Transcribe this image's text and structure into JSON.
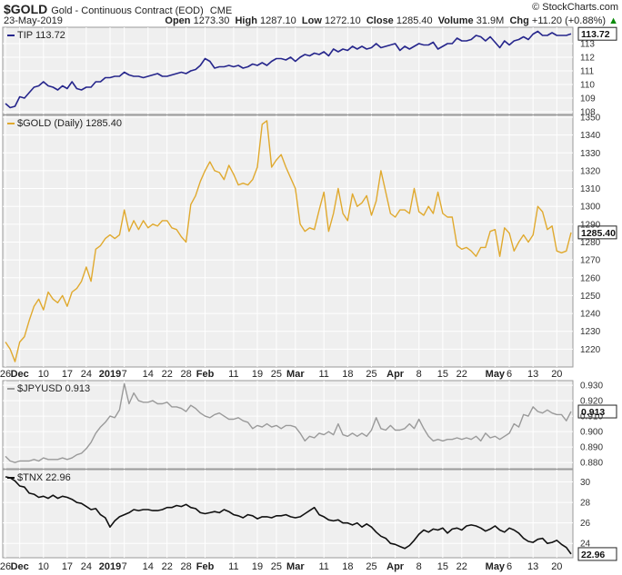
{
  "header": {
    "symbol": "$GOLD",
    "description": "Gold - Continuous Contract (EOD)",
    "exchange": "CME",
    "date": "23-May-2019",
    "watermark": "© StockCharts.com",
    "open_label": "Open",
    "open": "1273.30",
    "high_label": "High",
    "high": "1287.10",
    "low_label": "Low",
    "low": "1272.10",
    "close_label": "Close",
    "close": "1285.40",
    "volume_label": "Volume",
    "volume": "31.9M",
    "chg_label": "Chg",
    "chg": "+11.20 (+0.88%)",
    "chg_arrow": "▲"
  },
  "x_axis": {
    "ticks": [
      {
        "label": "26",
        "i": 0
      },
      {
        "label": "Dec",
        "i": 3,
        "bold": true
      },
      {
        "label": "10",
        "i": 8
      },
      {
        "label": "17",
        "i": 13
      },
      {
        "label": "24",
        "i": 17
      },
      {
        "label": "2019",
        "i": 22,
        "bold": true
      },
      {
        "label": "7",
        "i": 25
      },
      {
        "label": "14",
        "i": 30
      },
      {
        "label": "22",
        "i": 34
      },
      {
        "label": "28",
        "i": 38
      },
      {
        "label": "Feb",
        "i": 42,
        "bold": true
      },
      {
        "label": "11",
        "i": 48
      },
      {
        "label": "19",
        "i": 53
      },
      {
        "label": "25",
        "i": 57
      },
      {
        "label": "Mar",
        "i": 61,
        "bold": true
      },
      {
        "label": "11",
        "i": 67
      },
      {
        "label": "18",
        "i": 72
      },
      {
        "label": "25",
        "i": 77
      },
      {
        "label": "Apr",
        "i": 82,
        "bold": true
      },
      {
        "label": "8",
        "i": 87
      },
      {
        "label": "15",
        "i": 92
      },
      {
        "label": "22",
        "i": 96
      },
      {
        "label": "May",
        "i": 103,
        "bold": true
      },
      {
        "label": "6",
        "i": 106
      },
      {
        "label": "13",
        "i": 111
      },
      {
        "label": "20",
        "i": 116
      }
    ]
  },
  "colors": {
    "tip": "#26268c",
    "gold": "#e0a92e",
    "jpy": "#9a9a9a",
    "tnx": "#111111",
    "panel_bg": "#efefef",
    "grid": "#ffffff",
    "border": "#9a9a9a"
  },
  "chart_data": [
    {
      "type": "line",
      "series": [
        {
          "name": "TIP",
          "last_label": "113.72",
          "values": [
            108.6,
            108.3,
            108.4,
            109.1,
            109.0,
            109.4,
            109.8,
            109.9,
            110.2,
            109.9,
            109.8,
            109.6,
            109.9,
            109.7,
            110.2,
            109.7,
            109.6,
            109.8,
            109.8,
            110.2,
            110.2,
            110.5,
            110.5,
            110.6,
            110.6,
            110.9,
            110.7,
            110.6,
            110.6,
            110.5,
            110.6,
            110.7,
            110.8,
            110.6,
            110.6,
            110.7,
            110.8,
            110.9,
            110.8,
            111.0,
            111.1,
            111.4,
            111.9,
            111.7,
            111.2,
            111.3,
            111.3,
            111.4,
            111.3,
            111.4,
            111.2,
            111.3,
            111.5,
            111.4,
            111.6,
            111.4,
            111.7,
            111.9,
            111.9,
            111.8,
            112.0,
            111.7,
            112.0,
            112.2,
            112.1,
            112.3,
            112.2,
            112.4,
            112.1,
            112.6,
            112.4,
            112.6,
            112.5,
            112.8,
            112.6,
            112.8,
            112.6,
            112.7,
            113.0,
            112.7,
            112.8,
            112.9,
            113.0,
            112.5,
            112.8,
            112.6,
            112.8,
            113.0,
            112.9,
            112.9,
            113.1,
            112.6,
            112.8,
            113.0,
            113.0,
            113.4,
            113.2,
            113.2,
            113.3,
            113.6,
            113.5,
            113.2,
            113.5,
            113.1,
            112.7,
            113.2,
            112.9,
            113.2,
            113.3,
            113.5,
            113.3,
            113.7,
            113.9,
            113.6,
            113.6,
            113.8,
            113.6,
            113.6,
            113.6,
            113.72
          ]
        }
      ],
      "y_ticks": [
        108,
        109,
        110,
        111,
        112,
        113
      ],
      "ylim": [
        107.8,
        114.2
      ]
    },
    {
      "type": "line",
      "series": [
        {
          "name": "$GOLD (Daily)",
          "last_label": "1285.40",
          "values": [
            1224,
            1220,
            1213,
            1224,
            1227,
            1236,
            1244,
            1248,
            1242,
            1252,
            1248,
            1246,
            1250,
            1244,
            1252,
            1254,
            1258,
            1266,
            1258,
            1276,
            1278,
            1282,
            1284,
            1282,
            1284,
            1298,
            1286,
            1292,
            1287,
            1292,
            1288,
            1290,
            1289,
            1292,
            1292,
            1288,
            1287,
            1283,
            1280,
            1301,
            1306,
            1314,
            1320,
            1325,
            1320,
            1319,
            1315,
            1323,
            1318,
            1312,
            1313,
            1312,
            1315,
            1322,
            1346,
            1348,
            1322,
            1326,
            1329,
            1322,
            1316,
            1310,
            1290,
            1286,
            1288,
            1287,
            1298,
            1308,
            1286,
            1296,
            1310,
            1296,
            1292,
            1307,
            1300,
            1302,
            1306,
            1295,
            1303,
            1320,
            1308,
            1296,
            1294,
            1298,
            1298,
            1296,
            1310,
            1297,
            1295,
            1300,
            1296,
            1308,
            1296,
            1294,
            1294,
            1278,
            1276,
            1277,
            1275,
            1272,
            1277,
            1277,
            1286,
            1287,
            1272,
            1288,
            1285,
            1275,
            1280,
            1284,
            1280,
            1284,
            1300,
            1297,
            1287,
            1289,
            1275,
            1274,
            1275,
            1285.4
          ]
        }
      ],
      "y_ticks": [
        1220,
        1230,
        1240,
        1250,
        1260,
        1270,
        1280,
        1290,
        1300,
        1310,
        1320,
        1330,
        1340,
        1350
      ],
      "ylim": [
        1210,
        1351
      ]
    },
    {
      "type": "line",
      "series": [
        {
          "name": "$JPYUSD",
          "last_label": "0.913",
          "values": [
            0.884,
            0.881,
            0.88,
            0.881,
            0.881,
            0.881,
            0.882,
            0.881,
            0.883,
            0.882,
            0.882,
            0.882,
            0.883,
            0.882,
            0.883,
            0.885,
            0.886,
            0.889,
            0.893,
            0.899,
            0.903,
            0.906,
            0.91,
            0.909,
            0.914,
            0.931,
            0.918,
            0.925,
            0.92,
            0.919,
            0.919,
            0.92,
            0.918,
            0.918,
            0.919,
            0.916,
            0.916,
            0.915,
            0.913,
            0.917,
            0.915,
            0.912,
            0.91,
            0.909,
            0.911,
            0.912,
            0.91,
            0.908,
            0.908,
            0.909,
            0.907,
            0.906,
            0.902,
            0.904,
            0.903,
            0.905,
            0.903,
            0.904,
            0.902,
            0.904,
            0.904,
            0.903,
            0.899,
            0.894,
            0.897,
            0.896,
            0.899,
            0.898,
            0.9,
            0.898,
            0.905,
            0.898,
            0.897,
            0.899,
            0.897,
            0.899,
            0.897,
            0.901,
            0.909,
            0.902,
            0.901,
            0.904,
            0.901,
            0.901,
            0.902,
            0.905,
            0.902,
            0.908,
            0.902,
            0.897,
            0.894,
            0.895,
            0.894,
            0.895,
            0.895,
            0.896,
            0.895,
            0.896,
            0.895,
            0.897,
            0.894,
            0.899,
            0.896,
            0.897,
            0.895,
            0.897,
            0.899,
            0.905,
            0.903,
            0.911,
            0.91,
            0.916,
            0.913,
            0.912,
            0.914,
            0.912,
            0.911,
            0.911,
            0.907,
            0.913
          ]
        }
      ],
      "y_ticks": [
        0.88,
        0.89,
        0.9,
        0.91,
        0.92,
        0.93
      ],
      "ylim": [
        0.876,
        0.933
      ]
    },
    {
      "type": "line",
      "series": [
        {
          "name": "$TNX",
          "last_label": "22.96",
          "values": [
            30.5,
            30.4,
            30.1,
            29.6,
            29.5,
            28.9,
            28.8,
            28.5,
            28.6,
            28.4,
            28.7,
            28.4,
            28.6,
            28.5,
            28.3,
            28.0,
            27.9,
            27.6,
            27.3,
            27.4,
            26.8,
            26.5,
            25.6,
            26.2,
            26.6,
            26.8,
            27.0,
            27.3,
            27.2,
            27.3,
            27.3,
            27.2,
            27.2,
            27.3,
            27.5,
            27.5,
            27.7,
            27.6,
            27.8,
            27.5,
            27.4,
            27.0,
            26.9,
            27.0,
            27.1,
            27.0,
            27.3,
            27.1,
            26.8,
            26.7,
            26.5,
            26.8,
            26.7,
            26.4,
            26.6,
            26.6,
            26.5,
            26.7,
            26.7,
            26.8,
            26.6,
            26.5,
            26.6,
            26.9,
            27.2,
            27.5,
            26.8,
            26.6,
            26.3,
            26.2,
            26.3,
            26.0,
            26.0,
            25.8,
            26.0,
            25.6,
            25.9,
            25.6,
            25.1,
            24.7,
            24.5,
            24.0,
            23.9,
            23.7,
            23.5,
            23.8,
            24.3,
            24.9,
            25.3,
            25.1,
            25.4,
            25.3,
            25.5,
            25.0,
            25.4,
            25.5,
            25.3,
            25.7,
            25.8,
            25.7,
            25.5,
            25.2,
            25.4,
            25.7,
            25.3,
            25.1,
            25.5,
            25.3,
            25.0,
            24.5,
            24.2,
            24.1,
            24.4,
            24.5,
            24.0,
            24.1,
            24.3,
            23.9,
            23.6,
            22.96
          ]
        }
      ],
      "y_ticks": [
        24,
        26,
        28,
        30
      ],
      "ylim": [
        22.6,
        31.2
      ]
    }
  ]
}
